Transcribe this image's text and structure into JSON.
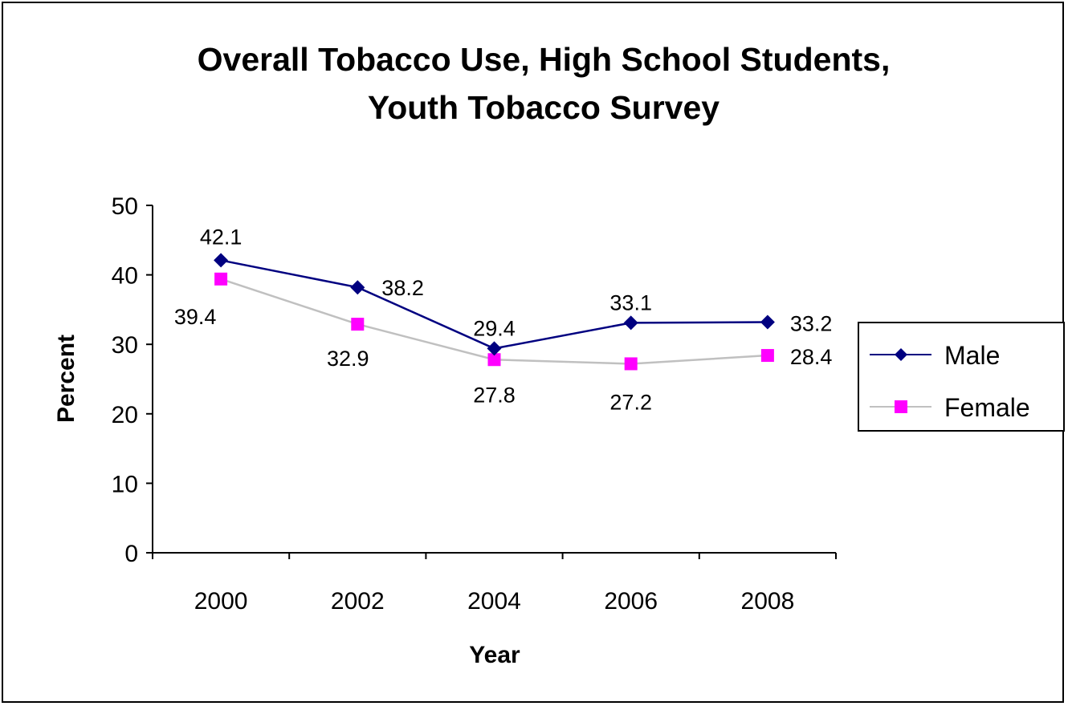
{
  "chart_data": {
    "type": "line",
    "title_lines": [
      "Overall Tobacco Use, High School Students,",
      "Youth Tobacco Survey"
    ],
    "xlabel": "Year",
    "ylabel": "Percent",
    "categories": [
      "2000",
      "2002",
      "2004",
      "2006",
      "2008"
    ],
    "ylim": [
      0,
      50
    ],
    "yticks": [
      "0",
      "10",
      "20",
      "30",
      "40",
      "50"
    ],
    "grid": false,
    "legend_position": "right",
    "series": [
      {
        "name": "Male",
        "values": [
          42.1,
          38.2,
          29.4,
          33.1,
          33.2
        ],
        "labels": [
          "42.1",
          "38.2",
          "29.4",
          "33.1",
          "33.2"
        ],
        "line_color": "#000080",
        "marker_color": "#000080",
        "marker": "diamond"
      },
      {
        "name": "Female",
        "values": [
          39.4,
          32.9,
          27.8,
          27.2,
          28.4
        ],
        "labels": [
          "39.4",
          "32.9",
          "27.8",
          "27.2",
          "28.4"
        ],
        "line_color": "#c0c0c0",
        "marker_color": "#ff00ff",
        "marker": "square"
      }
    ]
  }
}
